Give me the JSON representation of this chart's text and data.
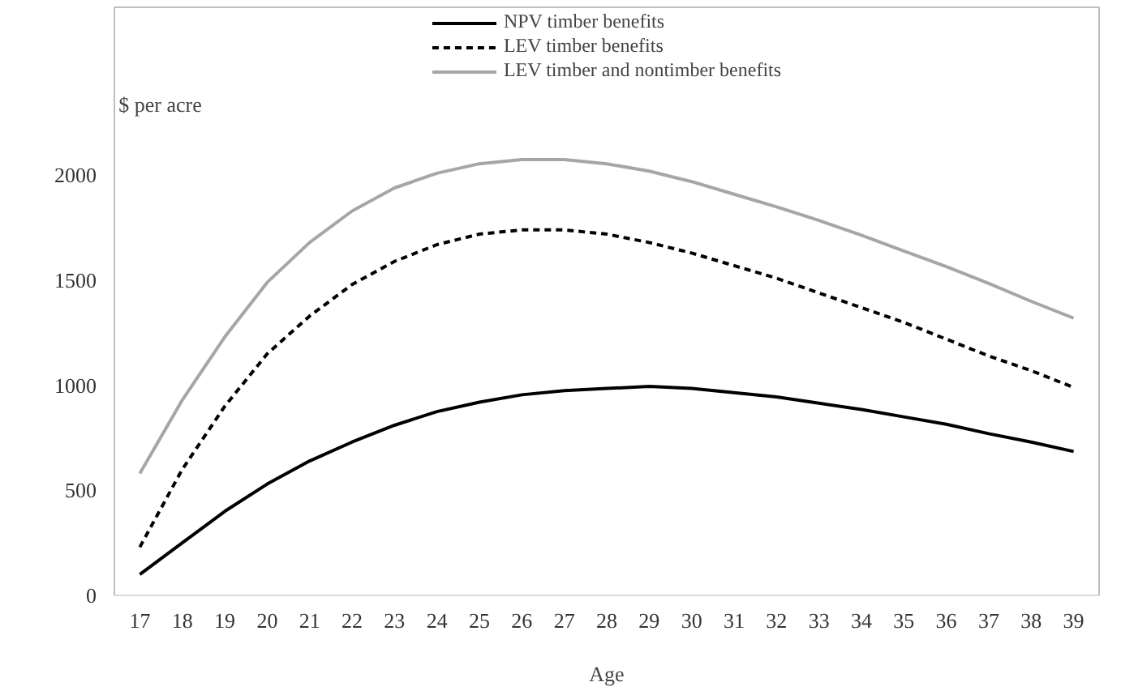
{
  "chart_data": {
    "type": "line",
    "ylabel": "$ per acre",
    "xlabel": "Age",
    "categories": [
      "17",
      "18",
      "19",
      "20",
      "21",
      "22",
      "23",
      "24",
      "25",
      "26",
      "27",
      "28",
      "29",
      "30",
      "31",
      "32",
      "33",
      "34",
      "35",
      "36",
      "37",
      "38",
      "39"
    ],
    "series": [
      {
        "name": "NPV timber benefits",
        "color": "#000000",
        "line_style": "solid",
        "values": [
          100,
          250,
          400,
          530,
          640,
          730,
          810,
          875,
          920,
          955,
          975,
          985,
          995,
          985,
          965,
          945,
          915,
          885,
          850,
          815,
          770,
          730,
          685
        ]
      },
      {
        "name": "LEV timber benefits",
        "color": "#000000",
        "line_style": "dashed",
        "values": [
          230,
          600,
          900,
          1150,
          1330,
          1480,
          1590,
          1670,
          1720,
          1740,
          1740,
          1720,
          1680,
          1630,
          1570,
          1510,
          1440,
          1370,
          1300,
          1220,
          1140,
          1070,
          990
        ]
      },
      {
        "name": "LEV timber and nontimber benefits",
        "color": "#a6a6a6",
        "line_style": "solid",
        "values": [
          580,
          930,
          1230,
          1490,
          1680,
          1830,
          1940,
          2010,
          2055,
          2075,
          2075,
          2055,
          2020,
          1970,
          1910,
          1850,
          1785,
          1715,
          1640,
          1565,
          1485,
          1400,
          1320
        ]
      }
    ],
    "ylim": [
      0,
      2800
    ],
    "yticks": [
      0,
      500,
      1000,
      1500,
      2000
    ],
    "grid": false,
    "legend": "top"
  }
}
